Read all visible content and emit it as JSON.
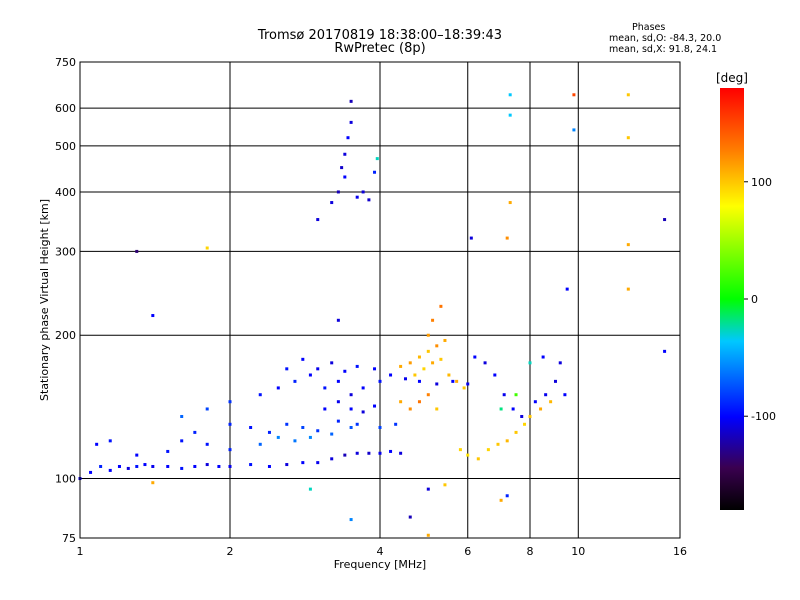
{
  "title_line1": "Tromsø 20170819 18:38:00–18:39:43",
  "title_line2": "RwPretec (8p)",
  "stats": {
    "heading": "Phases",
    "line_o": "mean, sd,O: -84.3, 20.0",
    "line_x": "mean, sd,X:  91.8, 24.1"
  },
  "colorbar": {
    "unit": "[deg]",
    "ticks": [
      "100",
      "0",
      "-100"
    ],
    "tick_values": [
      100,
      0,
      -100
    ],
    "range": [
      -180,
      180
    ]
  },
  "chart_data": {
    "type": "scatter",
    "xlabel": "Frequency [MHz]",
    "ylabel": "Stationary phase Virtual Height [km]",
    "x_scale": "log",
    "y_scale": "log",
    "xlim": [
      1,
      16
    ],
    "ylim": [
      75,
      750
    ],
    "x_ticks": [
      1,
      2,
      4,
      6,
      8,
      10,
      16
    ],
    "y_ticks": [
      75,
      100,
      200,
      300,
      400,
      500,
      600,
      750
    ],
    "grid": true,
    "color_by": "phase (deg)",
    "series": [
      {
        "values": [
          [
            1.0,
            100,
            -110
          ],
          [
            1.05,
            103,
            -100
          ],
          [
            1.1,
            106,
            -90
          ],
          [
            1.15,
            104,
            -100
          ],
          [
            1.2,
            106,
            -100
          ],
          [
            1.25,
            105,
            -110
          ],
          [
            1.3,
            106,
            -95
          ],
          [
            1.35,
            107,
            -100
          ],
          [
            1.4,
            106,
            -105
          ],
          [
            1.5,
            106,
            -100
          ],
          [
            1.6,
            105,
            -95
          ],
          [
            1.7,
            106,
            -100
          ],
          [
            1.8,
            107,
            -110
          ],
          [
            1.9,
            106,
            -100
          ],
          [
            2.0,
            106,
            -105
          ],
          [
            2.2,
            107,
            -95
          ],
          [
            2.4,
            106,
            -100
          ],
          [
            2.6,
            107,
            -110
          ],
          [
            2.8,
            108,
            -100
          ],
          [
            3.0,
            108,
            -105
          ],
          [
            3.2,
            110,
            -110
          ],
          [
            3.4,
            112,
            -120
          ],
          [
            3.6,
            113,
            -110
          ],
          [
            3.8,
            113,
            -115
          ],
          [
            4.0,
            113,
            -105
          ],
          [
            4.2,
            114,
            -100
          ],
          [
            4.4,
            113,
            -110
          ],
          [
            1.08,
            118,
            -100
          ],
          [
            1.15,
            120,
            -95
          ],
          [
            1.3,
            112,
            -100
          ],
          [
            1.5,
            114,
            -95
          ],
          [
            1.6,
            120,
            -95
          ],
          [
            1.7,
            125,
            -90
          ],
          [
            1.8,
            118,
            -95
          ],
          [
            2.0,
            130,
            -90
          ],
          [
            2.2,
            128,
            -95
          ],
          [
            2.4,
            125,
            -90
          ],
          [
            2.6,
            130,
            -85
          ],
          [
            2.8,
            128,
            -80
          ],
          [
            3.0,
            126,
            -85
          ],
          [
            3.3,
            132,
            -90
          ],
          [
            3.6,
            130,
            -85
          ],
          [
            4.0,
            128,
            -80
          ],
          [
            4.3,
            130,
            -85
          ],
          [
            2.0,
            115,
            -90
          ],
          [
            2.3,
            118,
            -70
          ],
          [
            2.5,
            122,
            -60
          ],
          [
            2.7,
            120,
            -65
          ],
          [
            2.9,
            122,
            -60
          ],
          [
            3.2,
            124,
            -70
          ],
          [
            3.5,
            128,
            -75
          ],
          [
            1.6,
            135,
            -70
          ],
          [
            1.8,
            140,
            -80
          ],
          [
            2.0,
            145,
            -85
          ],
          [
            2.3,
            150,
            -95
          ],
          [
            2.5,
            155,
            -100
          ],
          [
            2.7,
            160,
            -90
          ],
          [
            2.9,
            165,
            -100
          ],
          [
            3.1,
            155,
            -95
          ],
          [
            3.3,
            160,
            -100
          ],
          [
            3.5,
            150,
            -110
          ],
          [
            3.7,
            155,
            -100
          ],
          [
            4.0,
            160,
            -95
          ],
          [
            4.2,
            165,
            -100
          ],
          [
            4.5,
            162,
            -105
          ],
          [
            4.8,
            160,
            -100
          ],
          [
            5.2,
            158,
            -110
          ],
          [
            5.6,
            160,
            -100
          ],
          [
            6.0,
            158,
            -105
          ],
          [
            2.6,
            170,
            -95
          ],
          [
            2.8,
            178,
            -100
          ],
          [
            3.0,
            170,
            -105
          ],
          [
            3.2,
            175,
            -110
          ],
          [
            3.4,
            168,
            -100
          ],
          [
            3.6,
            172,
            -95
          ],
          [
            3.9,
            170,
            -100
          ],
          [
            3.1,
            140,
            -100
          ],
          [
            3.3,
            145,
            -105
          ],
          [
            3.5,
            140,
            -100
          ],
          [
            3.7,
            138,
            -110
          ],
          [
            3.9,
            142,
            -100
          ],
          [
            3.2,
            380,
            -110
          ],
          [
            3.3,
            400,
            -120
          ],
          [
            3.35,
            450,
            -115
          ],
          [
            3.4,
            480,
            -110
          ],
          [
            3.45,
            520,
            -100
          ],
          [
            3.5,
            560,
            -110
          ],
          [
            3.5,
            620,
            -120
          ],
          [
            3.4,
            430,
            -100
          ],
          [
            3.6,
            390,
            -105
          ],
          [
            3.7,
            400,
            -110
          ],
          [
            3.8,
            385,
            -115
          ],
          [
            3.9,
            440,
            -90
          ],
          [
            3.95,
            470,
            -30
          ],
          [
            3.0,
            350,
            -110
          ],
          [
            3.3,
            215,
            -110
          ],
          [
            4.4,
            172,
            110
          ],
          [
            4.6,
            175,
            115
          ],
          [
            4.8,
            180,
            105
          ],
          [
            5.0,
            185,
            100
          ],
          [
            5.2,
            190,
            120
          ],
          [
            5.4,
            195,
            110
          ],
          [
            5.0,
            200,
            115
          ],
          [
            5.1,
            215,
            125
          ],
          [
            5.3,
            230,
            130
          ],
          [
            4.7,
            165,
            100
          ],
          [
            4.9,
            170,
            95
          ],
          [
            5.1,
            175,
            110
          ],
          [
            5.3,
            178,
            100
          ],
          [
            5.5,
            165,
            105
          ],
          [
            5.7,
            160,
            110
          ],
          [
            5.9,
            155,
            100
          ],
          [
            4.4,
            145,
            110
          ],
          [
            4.6,
            140,
            120
          ],
          [
            4.8,
            145,
            130
          ],
          [
            5.0,
            150,
            125
          ],
          [
            5.2,
            140,
            100
          ],
          [
            5.8,
            115,
            95
          ],
          [
            6.0,
            112,
            90
          ],
          [
            6.3,
            110,
            100
          ],
          [
            6.6,
            115,
            95
          ],
          [
            6.9,
            118,
            100
          ],
          [
            7.2,
            120,
            105
          ],
          [
            7.5,
            125,
            100
          ],
          [
            7.8,
            130,
            95
          ],
          [
            8.0,
            135,
            100
          ],
          [
            8.4,
            140,
            110
          ],
          [
            8.8,
            145,
            105
          ],
          [
            6.2,
            180,
            -100
          ],
          [
            6.5,
            175,
            -110
          ],
          [
            6.8,
            165,
            -100
          ],
          [
            7.1,
            150,
            -105
          ],
          [
            7.4,
            140,
            -100
          ],
          [
            7.7,
            135,
            -110
          ],
          [
            8.2,
            145,
            -100
          ],
          [
            8.6,
            150,
            -105
          ],
          [
            9.0,
            160,
            -110
          ],
          [
            9.4,
            150,
            -100
          ],
          [
            7.0,
            140,
            -20
          ],
          [
            7.5,
            150,
            20
          ],
          [
            8.0,
            175,
            -30
          ],
          [
            8.5,
            180,
            -100
          ],
          [
            9.2,
            175,
            -110
          ],
          [
            1.3,
            300,
            -140
          ],
          [
            1.4,
            220,
            -100
          ],
          [
            1.8,
            305,
            95
          ],
          [
            6.1,
            320,
            -110
          ],
          [
            7.2,
            320,
            120
          ],
          [
            7.3,
            380,
            110
          ],
          [
            7.3,
            580,
            -40
          ],
          [
            7.3,
            640,
            -40
          ],
          [
            9.5,
            250,
            -100
          ],
          [
            9.8,
            540,
            -60
          ],
          [
            12.6,
            640,
            100
          ],
          [
            12.6,
            520,
            100
          ],
          [
            12.6,
            310,
            110
          ],
          [
            12.6,
            250,
            110
          ],
          [
            14.9,
            350,
            -120
          ],
          [
            14.9,
            185,
            -100
          ],
          [
            9.8,
            640,
            150
          ],
          [
            5.0,
            95,
            -110
          ],
          [
            5.4,
            97,
            100
          ],
          [
            7.0,
            90,
            110
          ],
          [
            7.2,
            92,
            -90
          ],
          [
            3.5,
            82,
            -60
          ],
          [
            4.6,
            83,
            -120
          ],
          [
            5.0,
            76,
            110
          ],
          [
            2.9,
            95,
            -30
          ],
          [
            1.4,
            98,
            110
          ]
        ]
      }
    ]
  }
}
